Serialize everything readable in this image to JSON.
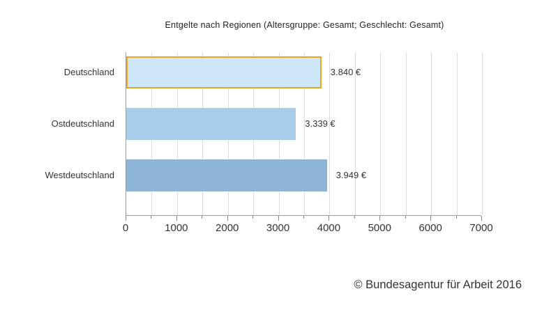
{
  "title": "Entgelte nach Regionen (Altersgruppe: Gesamt; Geschlecht: Gesamt)",
  "footer": {
    "copyright": "© Bundesagentur für Arbeit 2016"
  },
  "chart_data": {
    "type": "bar",
    "orientation": "horizontal",
    "title": "Entgelte nach Regionen (Altersgruppe: Gesamt; Geschlecht: Gesamt)",
    "categories": [
      "Deutschland",
      "Ostdeutschland",
      "Westdeutschland"
    ],
    "values": [
      3840,
      3339,
      3949
    ],
    "value_labels": [
      "3.840 €",
      "3.339 €",
      "3.949 €"
    ],
    "xlim": [
      0,
      7000
    ],
    "xticks": [
      0,
      1000,
      2000,
      3000,
      4000,
      5000,
      6000,
      7000
    ],
    "minor_tick_step": 500,
    "grid": true,
    "grid_step": 500,
    "highlighted_index": 0,
    "bar_colors": [
      "#cde7f8",
      "#a7cdeb",
      "#8db5d8"
    ],
    "highlight_border_color": "#f0a51f",
    "axis_color": "#9a9a9a"
  }
}
